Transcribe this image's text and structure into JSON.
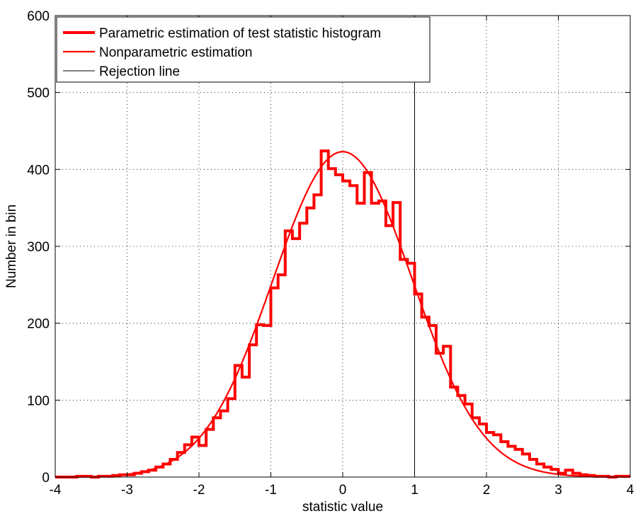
{
  "chart_data": {
    "type": "line",
    "xlabel": "statistic value",
    "ylabel": "Number in bin",
    "xlim": [
      -4,
      4
    ],
    "ylim": [
      0,
      600
    ],
    "grid": true,
    "legend_position": "top-left",
    "x_ticks": [
      "-4",
      "-3",
      "-2",
      "-1",
      "0",
      "1",
      "2",
      "3",
      "4"
    ],
    "y_ticks": [
      "0",
      "100",
      "200",
      "300",
      "400",
      "500",
      "600"
    ],
    "colors": {
      "series": "#ff0000",
      "rejection": "#000000"
    },
    "series": [
      {
        "name": "Parametric estimation of test statistic histogram",
        "style": "stairs-thick",
        "bin_width": 0.1,
        "x": [
          -4.0,
          -3.9,
          -3.8,
          -3.7,
          -3.6,
          -3.5,
          -3.4,
          -3.3,
          -3.2,
          -3.1,
          -3.0,
          -2.9,
          -2.8,
          -2.7,
          -2.6,
          -2.5,
          -2.4,
          -2.3,
          -2.2,
          -2.1,
          -2.0,
          -1.9,
          -1.8,
          -1.7,
          -1.6,
          -1.5,
          -1.4,
          -1.3,
          -1.2,
          -1.1,
          -1.0,
          -0.9,
          -0.8,
          -0.7,
          -0.6,
          -0.5,
          -0.4,
          -0.3,
          -0.2,
          -0.1,
          0.0,
          0.1,
          0.2,
          0.3,
          0.4,
          0.5,
          0.6,
          0.7,
          0.8,
          0.9,
          1.0,
          1.1,
          1.2,
          1.3,
          1.4,
          1.5,
          1.6,
          1.7,
          1.8,
          1.9,
          2.0,
          2.1,
          2.2,
          2.3,
          2.4,
          2.5,
          2.6,
          2.7,
          2.8,
          2.9,
          3.0,
          3.1,
          3.2,
          3.3,
          3.4,
          3.5,
          3.6,
          3.7,
          3.8,
          3.9
        ],
        "values": [
          0,
          0,
          0,
          1,
          1,
          0,
          1,
          1,
          2,
          3,
          3,
          5,
          7,
          9,
          13,
          17,
          23,
          32,
          42,
          52,
          41,
          62,
          77,
          86,
          102,
          145,
          130,
          172,
          198,
          197,
          246,
          263,
          320,
          310,
          330,
          350,
          367,
          424,
          401,
          393,
          385,
          379,
          356,
          396,
          356,
          359,
          327,
          357,
          283,
          278,
          238,
          208,
          197,
          161,
          170,
          117,
          106,
          95,
          77,
          69,
          58,
          55,
          46,
          40,
          36,
          30,
          23,
          17,
          13,
          10,
          5,
          9,
          5,
          3,
          2,
          1,
          1,
          0,
          1,
          1
        ]
      },
      {
        "name": "Nonparametric estimation",
        "style": "smooth",
        "mean": 0.0,
        "std": 0.97,
        "peak": 423
      },
      {
        "name": "Rejection line",
        "style": "vertical-line",
        "x": 1.0
      }
    ]
  }
}
